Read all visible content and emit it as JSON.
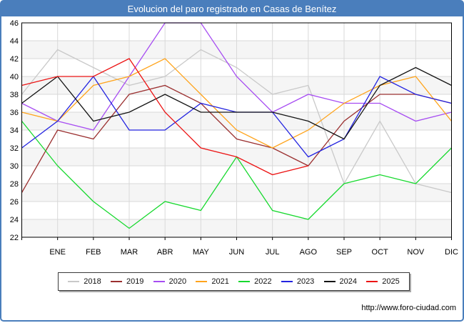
{
  "window": {
    "footer_url": "http://www.foro-ciudad.com"
  },
  "colors": {
    "frame_border": "#4a7ebc",
    "titlebar_bg": "#4a7ebc",
    "titlebar_text": "#ffffff",
    "plot_border": "#000000",
    "grid": "#d9d9d9",
    "band": "#f5f5f5",
    "axis_text": "#000000"
  },
  "chart_data": {
    "type": "line",
    "title": "Evolucion del paro registrado en Casas de Benítez",
    "xlabel": "",
    "ylabel": "",
    "ylim": [
      22,
      46
    ],
    "y_ticks": [
      46,
      44,
      42,
      40,
      38,
      36,
      34,
      32,
      30,
      28,
      26,
      24,
      22
    ],
    "x_tick_labels": [
      "ENE",
      "FEB",
      "MAR",
      "ABR",
      "MAY",
      "JUN",
      "JUL",
      "AGO",
      "SEP",
      "OCT",
      "NOV",
      "DIC"
    ],
    "first_point": "unlabeled point on left axis preceding ENE (previous December)",
    "grid": "on",
    "legend_position": "bottom",
    "series": [
      {
        "name": "2018",
        "color": "#c9c9c9",
        "values": [
          38,
          43,
          41,
          39,
          40,
          43,
          41,
          38,
          39,
          28,
          35,
          28,
          27
        ]
      },
      {
        "name": "2019",
        "color": "#9b3030",
        "values": [
          27,
          34,
          33,
          38,
          39,
          37,
          33,
          32,
          30,
          35,
          38,
          38,
          37
        ]
      },
      {
        "name": "2020",
        "color": "#a74df2",
        "values": [
          37,
          35,
          34,
          40,
          46,
          46,
          40,
          36,
          38,
          37,
          37,
          35,
          36
        ]
      },
      {
        "name": "2021",
        "color": "#ffa41c",
        "values": [
          36,
          35,
          39,
          40,
          42,
          38,
          34,
          32,
          34,
          37,
          39,
          40,
          35
        ]
      },
      {
        "name": "2022",
        "color": "#17d92e",
        "values": [
          35,
          30,
          26,
          23,
          26,
          25,
          31,
          25,
          24,
          28,
          29,
          28,
          32
        ]
      },
      {
        "name": "2023",
        "color": "#2424e0",
        "values": [
          32,
          35,
          40,
          34,
          34,
          37,
          36,
          36,
          31,
          33,
          40,
          38,
          37
        ]
      },
      {
        "name": "2024",
        "color": "#141414",
        "values": [
          37,
          40,
          35,
          36,
          38,
          36,
          36,
          36,
          35,
          33,
          39,
          41,
          39
        ]
      },
      {
        "name": "2025",
        "color": "#ec1414",
        "values": [
          39,
          40,
          40,
          42,
          36,
          32,
          31,
          29,
          30
        ]
      }
    ]
  }
}
